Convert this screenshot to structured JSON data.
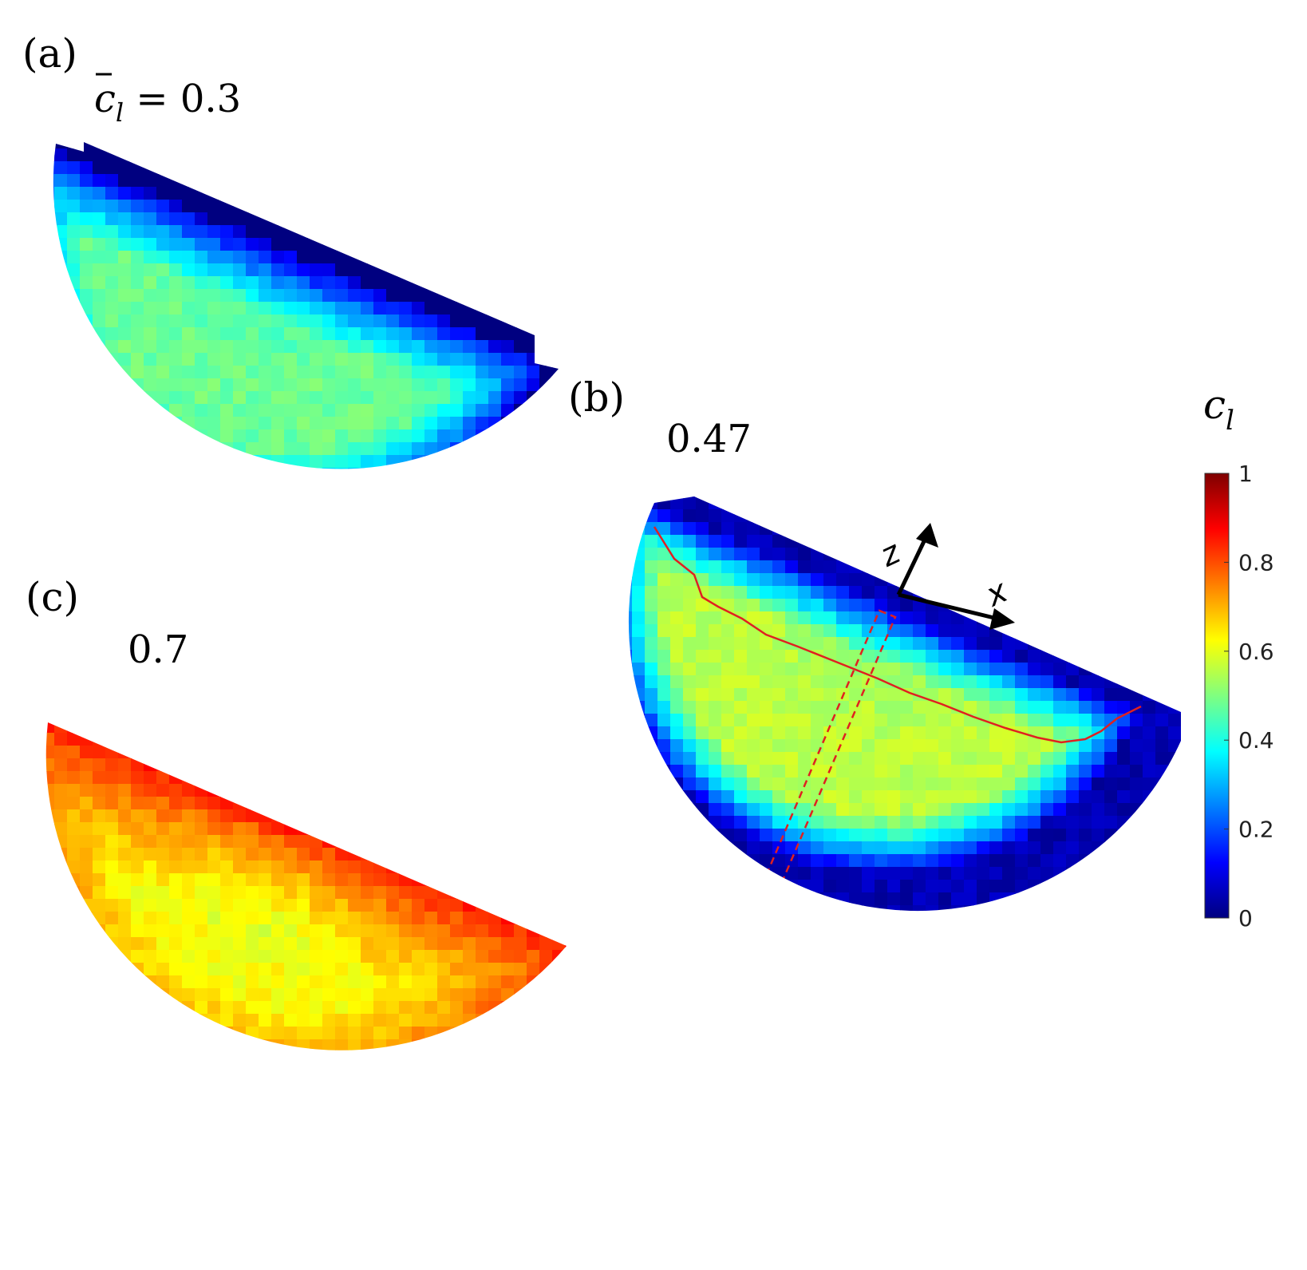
{
  "chart_data": {
    "type": "heatmap",
    "colorbar": {
      "label_symbol": "c",
      "label_subscript": "l",
      "colormap": "jet",
      "range": [
        0,
        1
      ],
      "ticks": [
        "0",
        "0.2",
        "0.4",
        "0.6",
        "0.8",
        "1"
      ]
    },
    "panels": [
      {
        "panel_label": "(a)",
        "value_symbol": "c",
        "value_subscript": "l",
        "value_prefix": " = ",
        "value": "0.3",
        "mean_cl": 0.3,
        "field": {
          "rim": 0.0,
          "interior": 0.48,
          "core": 0.42
        }
      },
      {
        "panel_label": "(b)",
        "value": "0.47",
        "mean_cl": 0.47,
        "field": {
          "rim": 0.05,
          "interior": 0.56,
          "core": 0.5
        },
        "axes_labels": {
          "z": "z",
          "x": "x"
        }
      },
      {
        "panel_label": "(c)",
        "value": "0.7",
        "mean_cl": 0.7,
        "field": {
          "rim": 0.85,
          "interior": 0.62,
          "core": 0.45
        }
      }
    ]
  },
  "colors": {
    "red_line": "#e02020",
    "arrow": "#000000"
  }
}
